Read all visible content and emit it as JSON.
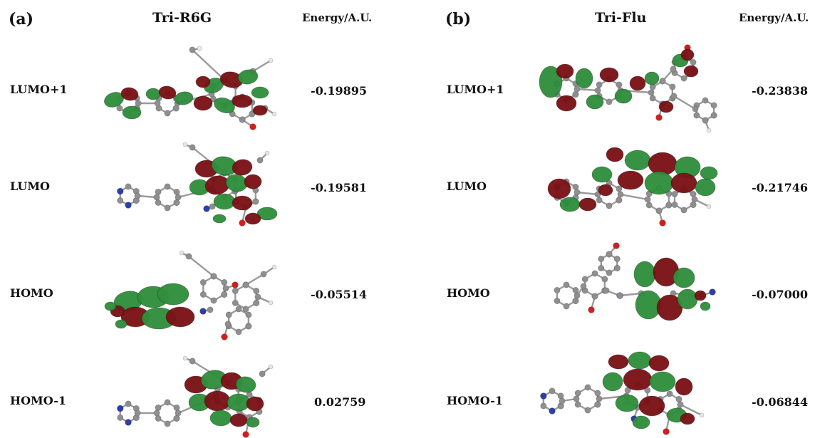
{
  "colors": {
    "lobe_red": "#7a1216",
    "lobe_green": "#2f8f3c",
    "carbon": "#8f8f8f",
    "hydrogen": "#e6e6e6",
    "nitrogen": "#2c3fa8",
    "oxygen": "#d21e1e"
  },
  "panels": [
    {
      "label": "(a)",
      "title": "Tri-R6G",
      "energy_header": "Energy/A.U.",
      "rows": [
        {
          "orbital": "LUMO+1",
          "energy": "-0.19895"
        },
        {
          "orbital": "LUMO",
          "energy": "-0.19581"
        },
        {
          "orbital": "HOMO",
          "energy": "-0.05514"
        },
        {
          "orbital": "HOMO-1",
          "energy": "0.02759"
        }
      ]
    },
    {
      "label": "(b)",
      "title": "Tri-Flu",
      "energy_header": "Energy/A.U.",
      "rows": [
        {
          "orbital": "LUMO+1",
          "energy": "-0.23838"
        },
        {
          "orbital": "LUMO",
          "energy": "-0.21746"
        },
        {
          "orbital": "HOMO",
          "energy": "-0.07000"
        },
        {
          "orbital": "HOMO-1",
          "energy": "-0.06844"
        }
      ]
    }
  ]
}
